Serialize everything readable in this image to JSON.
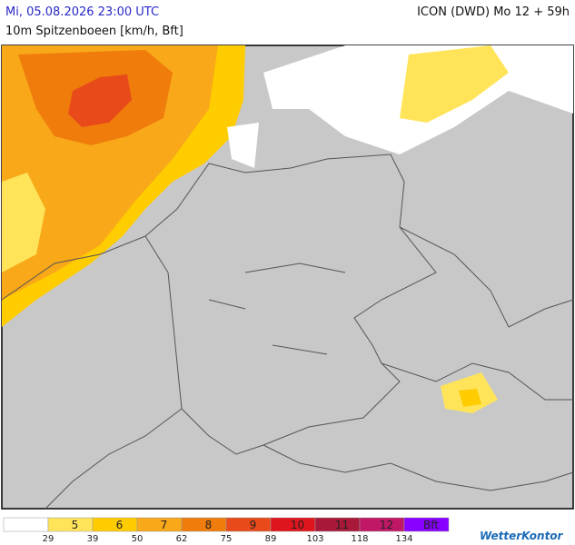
{
  "header": {
    "date": "Mi, 05.08.2026 23:00 UTC",
    "model": "ICON (DWD) Mo 12 + 59h",
    "parameter": "10m Spitzenboeen [km/h, Bft]"
  },
  "legend": {
    "classes": [
      {
        "color": "#ffffff"
      },
      {
        "label": "5",
        "color": "#ffe45a"
      },
      {
        "label": "6",
        "color": "#ffcc00"
      },
      {
        "label": "7",
        "color": "#f8a818"
      },
      {
        "label": "8",
        "color": "#f07c0c"
      },
      {
        "label": "9",
        "color": "#e84a1a"
      },
      {
        "label": "10",
        "color": "#e0141c"
      },
      {
        "label": "11",
        "color": "#a81838"
      },
      {
        "label": "12",
        "color": "#c01866"
      },
      {
        "label": "Bft",
        "color": "#8800ff"
      }
    ],
    "thresholds": [
      29,
      39,
      50,
      62,
      75,
      89,
      103,
      118,
      134
    ]
  },
  "brand": "WetterKontor"
}
